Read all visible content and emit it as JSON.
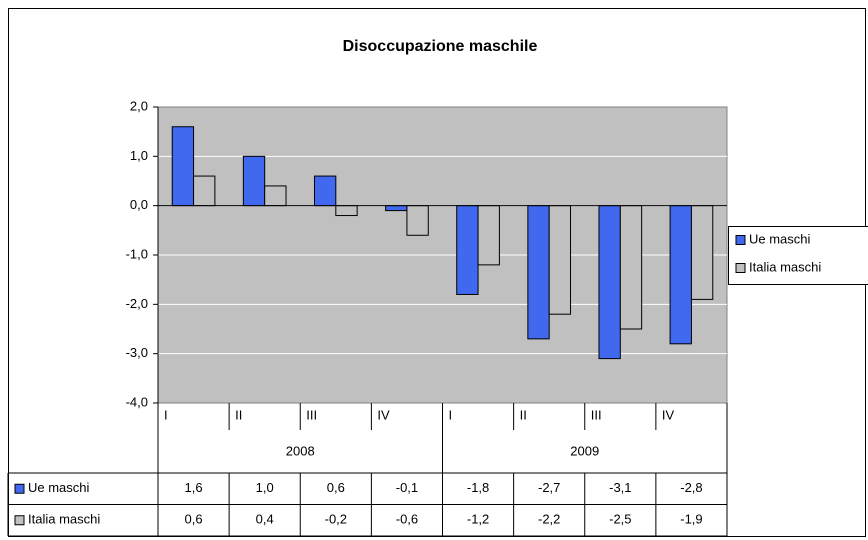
{
  "chart_data": {
    "type": "bar",
    "title": "Disoccupazione maschile",
    "categories": [
      "I",
      "II",
      "III",
      "IV",
      "I",
      "II",
      "III",
      "IV"
    ],
    "category_groups": [
      "2008",
      "2009"
    ],
    "series": [
      {
        "name": "Ue maschi",
        "color": "#4169f0",
        "values": [
          1.6,
          1.0,
          0.6,
          -0.1,
          -1.8,
          -2.7,
          -3.1,
          -2.8
        ],
        "value_labels": [
          "1,6",
          "1,0",
          "0,6",
          "-0,1",
          "-1,8",
          "-2,7",
          "-3,1",
          "-2,8"
        ]
      },
      {
        "name": "Italia maschi",
        "color": "#c0c0c0",
        "values": [
          0.6,
          0.4,
          -0.2,
          -0.6,
          -1.2,
          -2.2,
          -2.5,
          -1.9
        ],
        "value_labels": [
          "0,6",
          "0,4",
          "-0,2",
          "-0,6",
          "-1,2",
          "-2,2",
          "-2,5",
          "-1,9"
        ]
      }
    ],
    "ylim": [
      -4,
      2
    ],
    "yticks": [
      {
        "value": -4,
        "label": "-4,0"
      },
      {
        "value": -3,
        "label": "-3,0"
      },
      {
        "value": -2,
        "label": "-2,0"
      },
      {
        "value": -1,
        "label": "-1,0"
      },
      {
        "value": 0,
        "label": "0,0"
      },
      {
        "value": 1,
        "label": "1,0"
      },
      {
        "value": 2,
        "label": "2,0"
      }
    ],
    "grid": true,
    "plot_background": "#c0c0c0",
    "legend": "right"
  }
}
